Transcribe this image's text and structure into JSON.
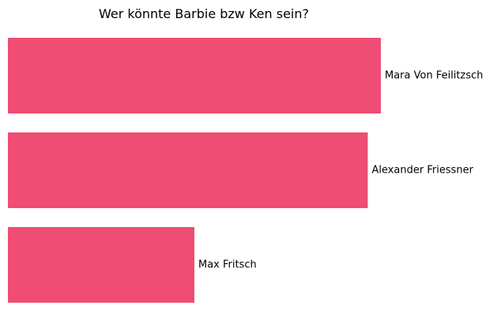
{
  "chart_data": {
    "type": "bar",
    "orientation": "horizontal",
    "title": "Wer könnte Barbie bzw Ken sein?",
    "categories": [
      "Mara Von Feilitzsch",
      "Alexander Friessner",
      "Max Fritsch"
    ],
    "values": [
      100,
      96.5,
      50
    ],
    "color": "#ef4d73",
    "xlim": [
      0,
      100
    ],
    "grid": false,
    "axes_visible": false,
    "xlabel": "",
    "ylabel": ""
  }
}
